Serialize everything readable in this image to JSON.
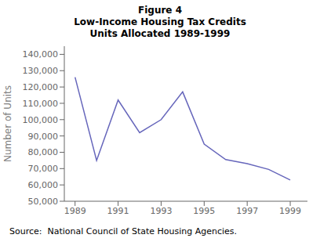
{
  "chart_data": {
    "type": "line",
    "title": [
      "Figure 4",
      "Low-Income Housing Tax Credits",
      "Units Allocated 1989-1999"
    ],
    "y_label": "Number of Units",
    "annotations": [
      "Source:  National Council of State Housing Agencies."
    ],
    "x": [
      1989,
      1990,
      1991,
      1992,
      1993,
      1994,
      1995,
      1996,
      1997,
      1998,
      1999
    ],
    "values": [
      126000,
      75000,
      112000,
      92000,
      100000,
      117000,
      85000,
      75500,
      73000,
      69500,
      63000
    ],
    "color": "#6666bb",
    "xlim": [
      1988.5,
      1999.8
    ],
    "xticks": [
      1989,
      1991,
      1993,
      1995,
      1997,
      1999
    ],
    "ylim": [
      50000,
      145000
    ],
    "yticks": [
      {
        "value": 50000,
        "label": "50,000"
      },
      {
        "value": 60000,
        "label": "60,000"
      },
      {
        "value": 70000,
        "label": "70,000"
      },
      {
        "value": 80000,
        "label": "80,000"
      },
      {
        "value": 90000,
        "label": "90,000"
      },
      {
        "value": 100000,
        "label": "100,000"
      },
      {
        "value": 110000,
        "label": "110,000"
      },
      {
        "value": 120000,
        "label": "120,000"
      },
      {
        "value": 130000,
        "label": "130,000"
      },
      {
        "value": 140000,
        "label": "140,000"
      }
    ],
    "grid": false
  }
}
